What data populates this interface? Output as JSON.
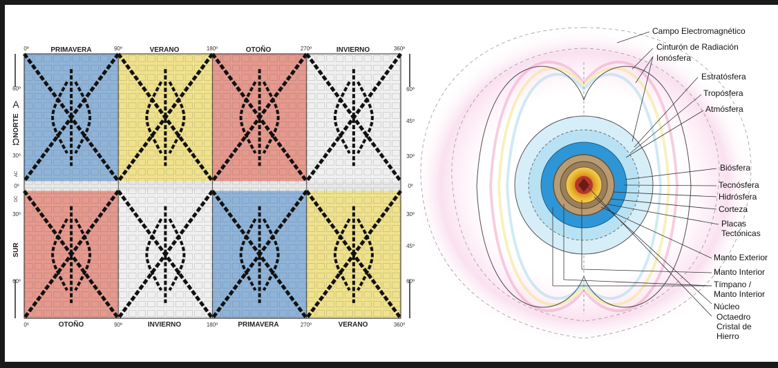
{
  "grid": {
    "top_seasons": [
      "PRIMAVERA",
      "VERANO",
      "OTOÑO",
      "INVIERNO"
    ],
    "bottom_seasons": [
      "OTOÑO",
      "INVIERNO",
      "PRIMAVERA",
      "VERANO"
    ],
    "degree_ticks": [
      "0º",
      "90º",
      "180º",
      "270º",
      "360º"
    ],
    "left_lat_labels": [
      "60º",
      "30º",
      "0º",
      "30º",
      "60º"
    ],
    "right_lat_labels": [
      "60º",
      "45º",
      "30º",
      "0º",
      "30º",
      "45º",
      "60º"
    ],
    "north_label": "NORTE",
    "south_label": "SUR",
    "alpha_symbol": "A",
    "omega_symbol": "Ω",
    "ac_label": "AC",
    "dc_label": "DC",
    "top_colors": [
      "#8fb4d9",
      "#f0e28c",
      "#e6998d",
      "#f0f0f0"
    ],
    "bottom_colors": [
      "#e6998d",
      "#f0f0f0",
      "#8fb4d9",
      "#f0e28c"
    ]
  },
  "earth": {
    "labels": [
      "Campo Electromagnético",
      "Cinturón de Radiación",
      "Ionósfera",
      "Estratósfera",
      "Tropósfera",
      "Atmósfera",
      "Biósfera",
      "Tecnósfera",
      "Hidrósfera",
      "Corteza",
      "Placas",
      "Tectónicas",
      "Manto Exterior",
      "Manto Interior",
      "Tímpano /",
      "Manto Interior",
      "Núcleo",
      "Octaedro",
      "Cristal de",
      "Hierro"
    ]
  }
}
